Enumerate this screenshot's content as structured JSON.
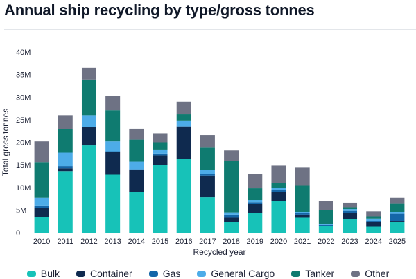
{
  "chart_data": {
    "type": "bar",
    "stacked": true,
    "title": "Annual ship recycling by type/gross tonnes",
    "xlabel": "Recycled year",
    "ylabel": "Total gross tonnes",
    "ylim": [
      0,
      40
    ],
    "y_ticks": [
      "0",
      "5M",
      "10M",
      "15M",
      "20M",
      "25M",
      "30M",
      "35M",
      "40M"
    ],
    "categories": [
      "2010",
      "2011",
      "2012",
      "2013",
      "2014",
      "2015",
      "2016",
      "2017",
      "2018",
      "2019",
      "2020",
      "2021",
      "2022",
      "2023",
      "2024",
      "2025"
    ],
    "grid": "none",
    "legend_position": "bottom",
    "series": [
      {
        "name": "Bulk",
        "color": "#17c2b8",
        "values": [
          3.4,
          13.6,
          19.3,
          12.8,
          9.0,
          14.9,
          16.3,
          7.8,
          2.4,
          4.4,
          7.0,
          3.3,
          1.4,
          3.0,
          1.3,
          2.4
        ]
      },
      {
        "name": "Container",
        "color": "#0f2a4f",
        "values": [
          2.1,
          0.6,
          4.1,
          5.0,
          4.8,
          2.2,
          7.2,
          4.8,
          0.9,
          1.9,
          2.0,
          0.7,
          0.1,
          1.4,
          1.1,
          0.2
        ]
      },
      {
        "name": "Gas",
        "color": "#1466a8",
        "values": [
          0.5,
          0.5,
          0.0,
          0.2,
          0.2,
          0.4,
          0.0,
          0.4,
          0.7,
          0.4,
          0.5,
          0.3,
          0.2,
          0.4,
          0.2,
          1.6
        ]
      },
      {
        "name": "General Cargo",
        "color": "#4dace8",
        "values": [
          1.7,
          3.0,
          2.6,
          2.2,
          1.7,
          0.9,
          1.2,
          0.8,
          0.5,
          0.5,
          0.4,
          0.3,
          0.2,
          0.4,
          0.5,
          0.4
        ]
      },
      {
        "name": "Tanker",
        "color": "#0f7b70",
        "values": [
          7.9,
          5.2,
          7.9,
          6.9,
          4.9,
          1.6,
          1.5,
          5.0,
          11.3,
          2.6,
          1.1,
          5.9,
          3.1,
          0.4,
          0.5,
          1.9
        ]
      },
      {
        "name": "Other",
        "color": "#6e7284",
        "values": [
          4.6,
          3.1,
          2.6,
          3.1,
          2.4,
          2.0,
          2.8,
          2.8,
          2.4,
          3.1,
          3.8,
          4.0,
          1.9,
          1.0,
          1.1,
          1.2
        ]
      }
    ]
  }
}
